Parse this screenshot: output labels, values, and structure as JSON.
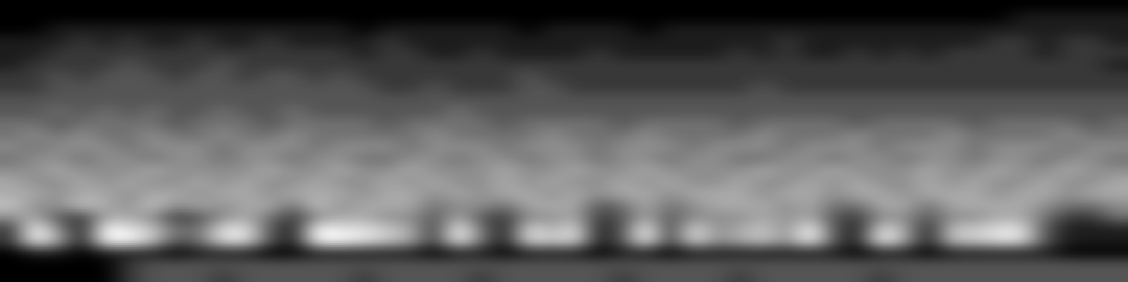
{
  "chart_data": {
    "type": "heatmap",
    "cells": [
      [
        0,
        0,
        0,
        0,
        0,
        0,
        0,
        0,
        0,
        0,
        0,
        0,
        0,
        0,
        0,
        0,
        0,
        0,
        0,
        0,
        0,
        0,
        0,
        0,
        0,
        0,
        0,
        0,
        0,
        0,
        0,
        0,
        0,
        0,
        0,
        0,
        0,
        0,
        0,
        0,
        0,
        0,
        0,
        0,
        0,
        0,
        0,
        0
      ],
      [
        0,
        0,
        0,
        0,
        0,
        0,
        0,
        0,
        0,
        0,
        0,
        0,
        0,
        0,
        0,
        0,
        0,
        0,
        0,
        0,
        0,
        0,
        0,
        0,
        0,
        0,
        0,
        0,
        0,
        0,
        0,
        0,
        0,
        0,
        0,
        0,
        0,
        0,
        0,
        0,
        0,
        0,
        0,
        1,
        1,
        1,
        1,
        1
      ],
      [
        0,
        0,
        1,
        1,
        1,
        1,
        1,
        1,
        1,
        1,
        1,
        1,
        1,
        1,
        1,
        0,
        1,
        1,
        1,
        1,
        1,
        1,
        0,
        1,
        1,
        1,
        1,
        0,
        1,
        1,
        1,
        1,
        1,
        1,
        1,
        1,
        1,
        1,
        1,
        1,
        1,
        1,
        1,
        1,
        1,
        1,
        1,
        1
      ],
      [
        1,
        1,
        1,
        2,
        1,
        2,
        1,
        1,
        2,
        1,
        1,
        2,
        1,
        1,
        1,
        1,
        2,
        1,
        1,
        1,
        1,
        1,
        1,
        1,
        1,
        1,
        1,
        1,
        1,
        1,
        1,
        1,
        1,
        2,
        1,
        1,
        1,
        1,
        1,
        1,
        1,
        1,
        2,
        2,
        1,
        2,
        2,
        1
      ],
      [
        1,
        1,
        2,
        2,
        2,
        2,
        2,
        2,
        2,
        2,
        2,
        2,
        2,
        2,
        2,
        1,
        2,
        2,
        1,
        1,
        2,
        1,
        1,
        1,
        1,
        2,
        1,
        1,
        1,
        1,
        1,
        2,
        1,
        2,
        1,
        1,
        2,
        1,
        2,
        1,
        2,
        2,
        2,
        2,
        1,
        2,
        2,
        2
      ],
      [
        1,
        2,
        2,
        2,
        2,
        3,
        2,
        2,
        2,
        3,
        2,
        2,
        2,
        2,
        2,
        2,
        2,
        2,
        2,
        2,
        2,
        2,
        2,
        2,
        2,
        2,
        2,
        2,
        2,
        2,
        2,
        2,
        2,
        2,
        2,
        2,
        2,
        2,
        2,
        2,
        2,
        2,
        2,
        2,
        2,
        2,
        2,
        1
      ],
      [
        2,
        2,
        3,
        2,
        3,
        3,
        3,
        2,
        3,
        3,
        2,
        3,
        3,
        2,
        3,
        2,
        2,
        2,
        2,
        2,
        2,
        2,
        3,
        2,
        2,
        2,
        2,
        2,
        2,
        2,
        2,
        2,
        2,
        2,
        2,
        2,
        2,
        2,
        2,
        2,
        2,
        2,
        2,
        2,
        2,
        2,
        2,
        2
      ],
      [
        2,
        2,
        3,
        3,
        3,
        3,
        3,
        3,
        3,
        3,
        3,
        3,
        3,
        3,
        3,
        3,
        2,
        2,
        3,
        2,
        2,
        2,
        3,
        3,
        2,
        2,
        2,
        2,
        2,
        2,
        2,
        2,
        3,
        2,
        2,
        2,
        2,
        2,
        2,
        2,
        2,
        2,
        2,
        2,
        2,
        2,
        2,
        2
      ],
      [
        3,
        3,
        3,
        3,
        3,
        3,
        3,
        3,
        3,
        3,
        3,
        3,
        3,
        3,
        3,
        3,
        3,
        3,
        3,
        3,
        3,
        3,
        3,
        3,
        3,
        3,
        3,
        3,
        3,
        3,
        3,
        3,
        3,
        3,
        3,
        3,
        3,
        3,
        3,
        3,
        3,
        3,
        3,
        3,
        3,
        3,
        3,
        3
      ],
      [
        3,
        3,
        4,
        3,
        4,
        3,
        4,
        3,
        3,
        4,
        3,
        3,
        4,
        3,
        3,
        3,
        3,
        3,
        3,
        4,
        3,
        3,
        3,
        3,
        3,
        3,
        3,
        3,
        3,
        3,
        3,
        3,
        3,
        3,
        3,
        3,
        3,
        3,
        3,
        3,
        3,
        3,
        3,
        3,
        3,
        3,
        3,
        3
      ],
      [
        4,
        4,
        3,
        4,
        4,
        4,
        4,
        3,
        4,
        4,
        4,
        3,
        4,
        4,
        4,
        4,
        3,
        4,
        4,
        4,
        4,
        3,
        4,
        4,
        4,
        4,
        3,
        4,
        4,
        4,
        4,
        3,
        4,
        4,
        4,
        4,
        3,
        4,
        4,
        4,
        4,
        3,
        4,
        4,
        4,
        4,
        3,
        4
      ],
      [
        4,
        5,
        4,
        5,
        4,
        4,
        5,
        4,
        4,
        5,
        4,
        4,
        5,
        4,
        4,
        4,
        4,
        4,
        5,
        4,
        4,
        4,
        4,
        5,
        4,
        4,
        4,
        5,
        4,
        4,
        4,
        4,
        5,
        4,
        4,
        4,
        5,
        4,
        4,
        4,
        5,
        4,
        4,
        4,
        4,
        5,
        4,
        4
      ],
      [
        5,
        4,
        5,
        5,
        5,
        4,
        5,
        5,
        5,
        4,
        5,
        5,
        5,
        4,
        5,
        5,
        5,
        4,
        5,
        5,
        5,
        4,
        5,
        5,
        5,
        4,
        5,
        5,
        5,
        4,
        5,
        5,
        5,
        4,
        5,
        5,
        5,
        4,
        5,
        5,
        5,
        4,
        5,
        5,
        5,
        4,
        5,
        5
      ],
      [
        4,
        5,
        5,
        4,
        5,
        5,
        4,
        5,
        5,
        4,
        5,
        5,
        4,
        5,
        5,
        4,
        4,
        5,
        5,
        4,
        5,
        5,
        4,
        5,
        5,
        4,
        5,
        5,
        4,
        5,
        5,
        4,
        4,
        5,
        5,
        4,
        5,
        5,
        4,
        5,
        5,
        4,
        5,
        5,
        4,
        5,
        5,
        4
      ],
      [
        5,
        5,
        6,
        5,
        5,
        5,
        6,
        5,
        5,
        5,
        5,
        6,
        5,
        5,
        6,
        5,
        5,
        6,
        5,
        5,
        5,
        6,
        5,
        5,
        6,
        5,
        5,
        6,
        5,
        5,
        5,
        5,
        6,
        5,
        5,
        6,
        5,
        5,
        5,
        6,
        5,
        5,
        6,
        5,
        5,
        6,
        5,
        5
      ],
      [
        6,
        5,
        5,
        6,
        5,
        6,
        5,
        5,
        6,
        5,
        6,
        5,
        5,
        6,
        5,
        5,
        6,
        5,
        6,
        5,
        5,
        6,
        5,
        6,
        5,
        5,
        6,
        5,
        6,
        5,
        5,
        6,
        5,
        5,
        6,
        5,
        6,
        5,
        5,
        6,
        5,
        6,
        5,
        5,
        6,
        5,
        5,
        6
      ],
      [
        6,
        6,
        5,
        6,
        6,
        5,
        6,
        6,
        5,
        6,
        6,
        5,
        6,
        6,
        6,
        5,
        6,
        6,
        5,
        6,
        5,
        6,
        6,
        5,
        6,
        5,
        6,
        6,
        5,
        6,
        6,
        6,
        5,
        6,
        6,
        5,
        6,
        6,
        5,
        6,
        6,
        6,
        5,
        6,
        6,
        5,
        6,
        6
      ],
      [
        7,
        5,
        5,
        7,
        6,
        5,
        7,
        5,
        6,
        5,
        6,
        6,
        4,
        7,
        5,
        6,
        6,
        6,
        4,
        5,
        5,
        4,
        6,
        6,
        6,
        3,
        4,
        6,
        4,
        5,
        6,
        6,
        6,
        5,
        6,
        4,
        4,
        6,
        6,
        4,
        6,
        6,
        6,
        6,
        5,
        4,
        4,
        5
      ],
      [
        5,
        6,
        3,
        2,
        6,
        6,
        5,
        2,
        3,
        5,
        6,
        4,
        2,
        5,
        6,
        6,
        5,
        5,
        3,
        6,
        3,
        2,
        5,
        5,
        6,
        2,
        3,
        6,
        3,
        5,
        5,
        5,
        6,
        5,
        6,
        3,
        2,
        5,
        5,
        3,
        5,
        5,
        6,
        6,
        4,
        2,
        2,
        4
      ],
      [
        2,
        9,
        5,
        1,
        9,
        8,
        7,
        4,
        4,
        8,
        8,
        3,
        1,
        9,
        8,
        8,
        7,
        6,
        2,
        9,
        4,
        1,
        8,
        6,
        8,
        1,
        3,
        9,
        2,
        8,
        5,
        6,
        7,
        5,
        9,
        3,
        1,
        8,
        6,
        1,
        7,
        7,
        8,
        8,
        3,
        1,
        1,
        1
      ],
      [
        2,
        9,
        6,
        1,
        9,
        9,
        7,
        3,
        4,
        8,
        8,
        3,
        1,
        9,
        9,
        8,
        7,
        6,
        2,
        9,
        4,
        1,
        8,
        7,
        8,
        1,
        3,
        9,
        2,
        8,
        5,
        6,
        7,
        5,
        9,
        3,
        1,
        9,
        6,
        1,
        7,
        7,
        8,
        8,
        3,
        1,
        1,
        1
      ],
      [
        0,
        1,
        1,
        0,
        1,
        1,
        1,
        0,
        1,
        1,
        1,
        0,
        0,
        1,
        1,
        1,
        1,
        1,
        0,
        1,
        1,
        0,
        1,
        1,
        1,
        0,
        1,
        1,
        0,
        1,
        1,
        1,
        1,
        1,
        1,
        1,
        0,
        1,
        1,
        0,
        1,
        1,
        1,
        1,
        1,
        0,
        0,
        0
      ],
      [
        0,
        0,
        0,
        0,
        0,
        2,
        3,
        3,
        3,
        3,
        3,
        3,
        3,
        3,
        3,
        3,
        3,
        3,
        3,
        3,
        3,
        3,
        3,
        3,
        3,
        3,
        3,
        3,
        3,
        3,
        3,
        3,
        3,
        3,
        3,
        3,
        3,
        3,
        3,
        3,
        3,
        3,
        3,
        3,
        3,
        3,
        3,
        3
      ],
      [
        0,
        0,
        0,
        0,
        0,
        2,
        3,
        3,
        3,
        2,
        3,
        3,
        3,
        3,
        3,
        2,
        3,
        3,
        3,
        3,
        2,
        3,
        3,
        3,
        3,
        3,
        2,
        3,
        3,
        3,
        3,
        2,
        3,
        3,
        3,
        3,
        3,
        2,
        3,
        3,
        3,
        3,
        3,
        3,
        3,
        3,
        3,
        3
      ]
    ],
    "clim": [
      0,
      9
    ],
    "tick_labels": false
  }
}
